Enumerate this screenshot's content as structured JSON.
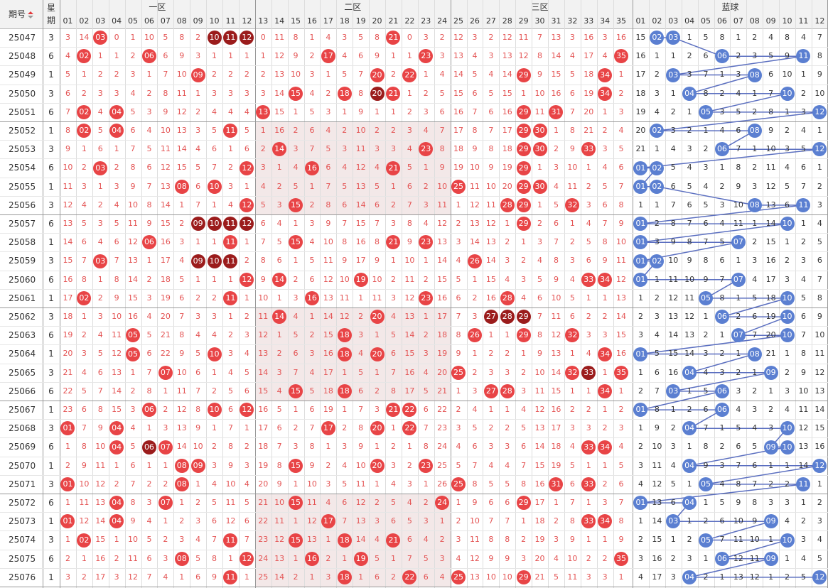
{
  "chart_data": {
    "type": "table",
    "header": {
      "period": "期号",
      "week": "星期"
    },
    "zones": [
      "一区",
      "二区",
      "三区",
      "蓝球"
    ],
    "red_numbers": [
      "01",
      "02",
      "03",
      "04",
      "05",
      "06",
      "07",
      "08",
      "09",
      "10",
      "11",
      "12",
      "13",
      "14",
      "15",
      "16",
      "17",
      "18",
      "19",
      "20",
      "21",
      "22",
      "23",
      "24",
      "25",
      "26",
      "27",
      "28",
      "29",
      "30",
      "31",
      "32",
      "33",
      "34",
      "35"
    ],
    "blue_numbers": [
      "01",
      "02",
      "03",
      "04",
      "05",
      "06",
      "07",
      "08",
      "09",
      "10",
      "11",
      "12"
    ],
    "rows": [
      {
        "period": "25047",
        "week": "3",
        "red": [
          3,
          10,
          11,
          12,
          21
        ],
        "blue": [
          2,
          3
        ]
      },
      {
        "period": "25048",
        "week": "6",
        "red": [
          2,
          6,
          17,
          23,
          35
        ],
        "blue": [
          6,
          11
        ]
      },
      {
        "period": "25049",
        "week": "1",
        "red": [
          9,
          20,
          22,
          29,
          34
        ],
        "blue": [
          3,
          8
        ]
      },
      {
        "period": "25050",
        "week": "3",
        "red": [
          15,
          18,
          20,
          21,
          34
        ],
        "blue": [
          4,
          10
        ]
      },
      {
        "period": "25051",
        "week": "6",
        "red": [
          2,
          4,
          13,
          29,
          31
        ],
        "blue": [
          5,
          12
        ]
      },
      {
        "period": "25052",
        "week": "1",
        "red": [
          2,
          4,
          11,
          29,
          30
        ],
        "blue": [
          2,
          8
        ]
      },
      {
        "period": "25053",
        "week": "3",
        "red": [
          14,
          23,
          29,
          30,
          33
        ],
        "blue": [
          6,
          12
        ]
      },
      {
        "period": "25054",
        "week": "6",
        "red": [
          3,
          12,
          16,
          21,
          29
        ],
        "blue": [
          1,
          2
        ]
      },
      {
        "period": "25055",
        "week": "1",
        "red": [
          8,
          10,
          25,
          29,
          30
        ],
        "blue": [
          1,
          2
        ]
      },
      {
        "period": "25056",
        "week": "3",
        "red": [
          12,
          15,
          28,
          29,
          32
        ],
        "blue": [
          8,
          11
        ]
      },
      {
        "period": "25057",
        "week": "6",
        "red": [
          9,
          10,
          11,
          12,
          29
        ],
        "blue": [
          1,
          10
        ]
      },
      {
        "period": "25058",
        "week": "1",
        "red": [
          6,
          11,
          15,
          21,
          23
        ],
        "blue": [
          1,
          7
        ]
      },
      {
        "period": "25059",
        "week": "3",
        "red": [
          3,
          9,
          10,
          11,
          26
        ],
        "blue": [
          1,
          2
        ]
      },
      {
        "period": "25060",
        "week": "6",
        "red": [
          12,
          14,
          19,
          33,
          34
        ],
        "blue": [
          1,
          7
        ]
      },
      {
        "period": "25061",
        "week": "1",
        "red": [
          2,
          11,
          16,
          23,
          28
        ],
        "blue": [
          5,
          10
        ]
      },
      {
        "period": "25062",
        "week": "3",
        "red": [
          14,
          20,
          27,
          28,
          29
        ],
        "blue": [
          6,
          10
        ]
      },
      {
        "period": "25063",
        "week": "6",
        "red": [
          5,
          18,
          26,
          29,
          32
        ],
        "blue": [
          7,
          10
        ]
      },
      {
        "period": "25064",
        "week": "1",
        "red": [
          5,
          10,
          18,
          20,
          34
        ],
        "blue": [
          1,
          8
        ]
      },
      {
        "period": "25065",
        "week": "3",
        "red": [
          7,
          25,
          32,
          33,
          35
        ],
        "blue": [
          4,
          9
        ]
      },
      {
        "period": "25066",
        "week": "6",
        "red": [
          15,
          18,
          27,
          28,
          34
        ],
        "blue": [
          3,
          6
        ]
      },
      {
        "period": "25067",
        "week": "1",
        "red": [
          6,
          10,
          12,
          21,
          22
        ],
        "blue": [
          1,
          6
        ]
      },
      {
        "period": "25068",
        "week": "3",
        "red": [
          1,
          4,
          17,
          20,
          22
        ],
        "blue": [
          4,
          10
        ]
      },
      {
        "period": "25069",
        "week": "6",
        "red": [
          4,
          6,
          7,
          33,
          34
        ],
        "blue": [
          9,
          10
        ]
      },
      {
        "period": "25070",
        "week": "1",
        "red": [
          8,
          9,
          15,
          20,
          23
        ],
        "blue": [
          4,
          12
        ]
      },
      {
        "period": "25071",
        "week": "3",
        "red": [
          1,
          8,
          25,
          31,
          33
        ],
        "blue": [
          5,
          11
        ]
      },
      {
        "period": "25072",
        "week": "6",
        "red": [
          4,
          7,
          15,
          24,
          29
        ],
        "blue": [
          1,
          4
        ]
      },
      {
        "period": "25073",
        "week": "1",
        "red": [
          1,
          4,
          17,
          33,
          34
        ],
        "blue": [
          3,
          9
        ]
      },
      {
        "period": "25074",
        "week": "3",
        "red": [
          2,
          11,
          15,
          18,
          21
        ],
        "blue": [
          5,
          10
        ]
      },
      {
        "period": "25075",
        "week": "6",
        "red": [
          8,
          12,
          16,
          19,
          35
        ],
        "blue": [
          6,
          9
        ]
      },
      {
        "period": "25076",
        "week": "1",
        "red": [
          11,
          18,
          22,
          25,
          29
        ],
        "blue": [
          4,
          12
        ]
      }
    ],
    "colors": {
      "red_ball": "#e84446",
      "red_ball_dark": "#9b1c1c",
      "blue_ball": "#5b7fd1",
      "missing_red": "#e45454",
      "missing_blue": "#333333",
      "line": "#5b6fc0"
    }
  }
}
